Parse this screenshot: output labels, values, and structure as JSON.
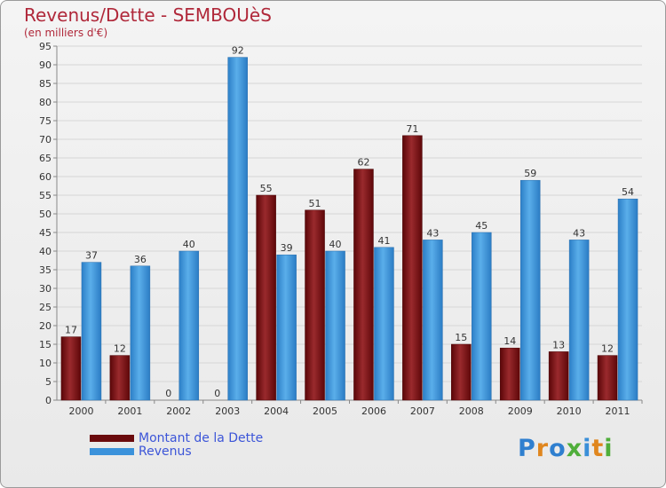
{
  "header": {
    "title": "Revenus/Dette - SEMBOUèS",
    "subtitle": "(en milliers d'€)"
  },
  "logo": {
    "text": "Proxiti",
    "colors": [
      "#2f7fcf",
      "#e0861e",
      "#2f7fcf",
      "#4fae3a",
      "#3a8fd8",
      "#e0861e",
      "#4fae3a"
    ]
  },
  "chart_data": {
    "type": "bar",
    "categories": [
      "2000",
      "2001",
      "2002",
      "2003",
      "2004",
      "2005",
      "2006",
      "2007",
      "2008",
      "2009",
      "2010",
      "2011"
    ],
    "series": [
      {
        "name": "Montant de la Dette",
        "color": "#7a0f12",
        "values": [
          17,
          12,
          0,
          0,
          55,
          51,
          62,
          71,
          15,
          14,
          13,
          12
        ]
      },
      {
        "name": "Revenus",
        "color": "#3b92db",
        "values": [
          37,
          36,
          40,
          92,
          39,
          40,
          41,
          43,
          45,
          59,
          43,
          54
        ]
      }
    ],
    "ylim": [
      0,
      95
    ],
    "yticks": [
      0,
      5,
      10,
      15,
      20,
      25,
      30,
      35,
      40,
      45,
      50,
      55,
      60,
      65,
      70,
      75,
      80,
      85,
      90,
      95
    ],
    "grid": true,
    "legend": "bottom-left"
  }
}
